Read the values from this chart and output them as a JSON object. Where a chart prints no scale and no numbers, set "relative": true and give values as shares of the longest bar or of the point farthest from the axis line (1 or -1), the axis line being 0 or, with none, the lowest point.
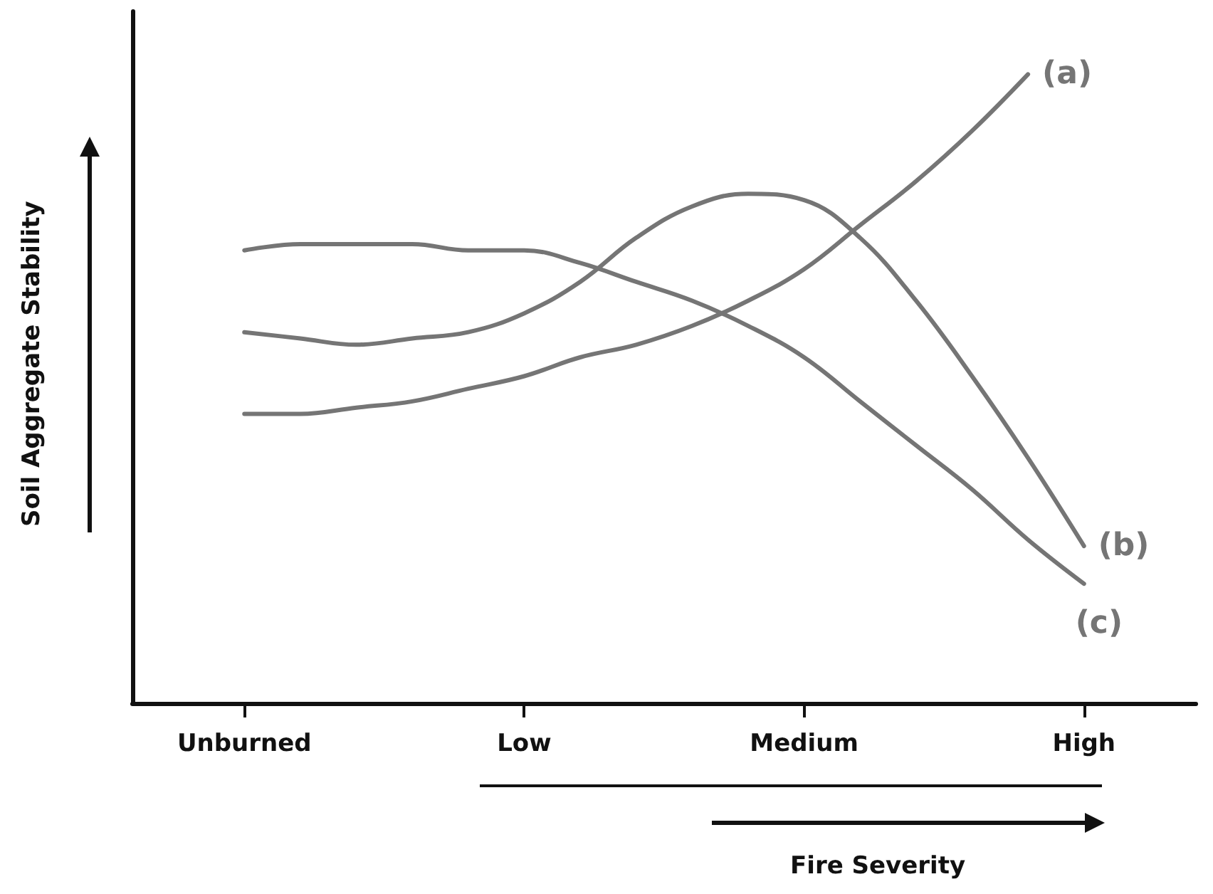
{
  "chart_data": {
    "type": "line",
    "relative": true,
    "xlabel": "Fire Severity",
    "ylabel": "Soil Aggregate Stability",
    "categories": [
      null,
      null,
      "Unburned",
      null,
      null,
      null,
      null,
      "Low",
      null,
      null,
      null,
      null,
      "Medium",
      null,
      null,
      null,
      null,
      "High",
      null,
      null
    ],
    "marker": "none",
    "line_style": "solid",
    "series": [
      {
        "name": "(a)",
        "color": "#757575",
        "values": [
          null,
          null,
          0.46,
          0.46,
          0.47,
          0.48,
          0.5,
          0.52,
          0.55,
          0.57,
          0.6,
          0.64,
          0.69,
          0.76,
          0.83,
          0.91,
          1.0,
          null,
          null,
          null
        ]
      },
      {
        "name": "(b)",
        "color": "#757575",
        "values": [
          null,
          null,
          0.59,
          0.58,
          0.57,
          0.58,
          0.59,
          0.62,
          0.67,
          0.74,
          0.79,
          0.81,
          0.8,
          0.74,
          0.64,
          0.52,
          0.39,
          0.25,
          null,
          null
        ]
      },
      {
        "name": "(c)",
        "color": "#757575",
        "values": [
          null,
          null,
          0.72,
          0.73,
          0.73,
          0.73,
          0.72,
          0.72,
          0.7,
          0.67,
          0.64,
          0.6,
          0.55,
          0.48,
          0.41,
          0.34,
          0.26,
          0.19,
          null,
          null
        ]
      }
    ]
  }
}
